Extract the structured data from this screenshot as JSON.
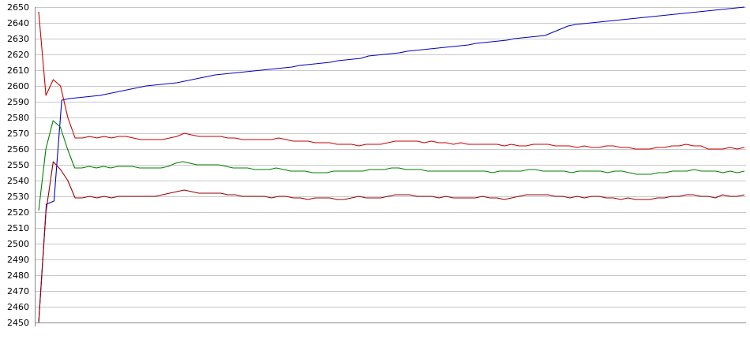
{
  "chart_data": {
    "type": "line",
    "title": "",
    "xlabel": "",
    "ylabel": "",
    "ylim": [
      2450,
      2650
    ],
    "yticks": [
      2450,
      2460,
      2470,
      2480,
      2490,
      2500,
      2510,
      2520,
      2530,
      2540,
      2550,
      2560,
      2570,
      2580,
      2590,
      2600,
      2610,
      2620,
      2630,
      2640,
      2650
    ],
    "grid": "horizontal",
    "legend": "none",
    "colors": {
      "grid": "#c8c8c8",
      "axis": "#888888",
      "background": "#ffffff"
    },
    "series": [
      {
        "color": "#0000cc",
        "values": [
          2450,
          2525,
          2527,
          2591,
          2592,
          2592.5,
          2593,
          2593.5,
          2594,
          2595,
          2596,
          2597,
          2598,
          2599,
          2600,
          2600.5,
          2601,
          2601.5,
          2602,
          2603,
          2604,
          2605,
          2606,
          2607,
          2607.5,
          2608,
          2608.5,
          2609,
          2609.5,
          2610,
          2610.5,
          2611,
          2611.5,
          2612,
          2613,
          2613.5,
          2614,
          2614.5,
          2615,
          2616,
          2616.5,
          2617,
          2617.5,
          2619,
          2619.5,
          2620,
          2620.5,
          2621,
          2622,
          2622.5,
          2623,
          2623.5,
          2624,
          2624.5,
          2625,
          2625.5,
          2626,
          2627,
          2627.5,
          2628,
          2628.5,
          2629,
          2630,
          2630.5,
          2631,
          2631.5,
          2632,
          2634,
          2636,
          2638,
          2639,
          2639.5,
          2640,
          2640.5,
          2641,
          2641.5,
          2642,
          2642.5,
          2643,
          2643.5,
          2644,
          2644.5,
          2645,
          2645.5,
          2646,
          2646.5,
          2647,
          2647.5,
          2648,
          2648.5,
          2649,
          2649.5,
          2650
        ]
      },
      {
        "color": "#cc0000",
        "values": [
          2647,
          2594,
          2604,
          2600,
          2580,
          2567,
          2567,
          2568,
          2567,
          2568,
          2567,
          2568,
          2568,
          2567,
          2566,
          2566,
          2566,
          2566,
          2567,
          2568,
          2570,
          2569,
          2568,
          2568,
          2568,
          2568,
          2567,
          2567,
          2566,
          2566,
          2566,
          2566,
          2566,
          2567,
          2566,
          2565,
          2565,
          2565,
          2564,
          2564,
          2564,
          2563,
          2563,
          2563,
          2562,
          2563,
          2563,
          2563,
          2564,
          2565,
          2565,
          2565,
          2565,
          2564,
          2565,
          2564,
          2564,
          2563,
          2564,
          2563,
          2563,
          2563,
          2563,
          2563,
          2562,
          2563,
          2562,
          2562,
          2563,
          2563,
          2563,
          2562,
          2562,
          2562,
          2561,
          2562,
          2561,
          2561,
          2562,
          2562,
          2561,
          2561,
          2560,
          2560,
          2560,
          2561,
          2561,
          2562,
          2562,
          2563,
          2562,
          2562,
          2560,
          2560,
          2560,
          2561,
          2560,
          2561
        ]
      },
      {
        "color": "#008000",
        "values": [
          2521,
          2560,
          2578,
          2574,
          2560,
          2548,
          2548,
          2549,
          2548,
          2549,
          2548,
          2549,
          2549,
          2549,
          2548,
          2548,
          2548,
          2548,
          2549,
          2551,
          2552,
          2551,
          2550,
          2550,
          2550,
          2550,
          2549,
          2548,
          2548,
          2548,
          2547,
          2547,
          2547,
          2548,
          2547,
          2546,
          2546,
          2546,
          2545,
          2545,
          2545,
          2546,
          2546,
          2546,
          2546,
          2546,
          2547,
          2547,
          2547,
          2548,
          2548,
          2547,
          2547,
          2547,
          2546,
          2546,
          2546,
          2546,
          2546,
          2546,
          2546,
          2546,
          2546,
          2545,
          2546,
          2546,
          2546,
          2546,
          2547,
          2547,
          2546,
          2546,
          2546,
          2546,
          2545,
          2546,
          2546,
          2546,
          2546,
          2545,
          2546,
          2546,
          2545,
          2544,
          2544,
          2544,
          2545,
          2545,
          2546,
          2546,
          2546,
          2547,
          2546,
          2546,
          2546,
          2545,
          2546,
          2545,
          2546
        ]
      },
      {
        "color": "#990000",
        "values": [
          2450,
          2520,
          2552,
          2547,
          2540,
          2529,
          2529,
          2530,
          2529,
          2530,
          2529,
          2530,
          2530,
          2530,
          2530,
          2530,
          2530,
          2531,
          2532,
          2533,
          2534,
          2533,
          2532,
          2532,
          2532,
          2532,
          2531,
          2531,
          2530,
          2530,
          2530,
          2530,
          2529,
          2530,
          2530,
          2529,
          2529,
          2528,
          2529,
          2529,
          2529,
          2528,
          2528,
          2529,
          2530,
          2529,
          2529,
          2529,
          2530,
          2531,
          2531,
          2531,
          2530,
          2530,
          2530,
          2529,
          2530,
          2529,
          2529,
          2529,
          2529,
          2530,
          2529,
          2529,
          2528,
          2529,
          2530,
          2531,
          2531,
          2531,
          2531,
          2530,
          2530,
          2529,
          2530,
          2529,
          2530,
          2530,
          2529,
          2529,
          2528,
          2529,
          2528,
          2528,
          2528,
          2529,
          2529,
          2530,
          2530,
          2531,
          2531,
          2530,
          2530,
          2529,
          2531,
          2530,
          2530,
          2531
        ]
      }
    ]
  }
}
